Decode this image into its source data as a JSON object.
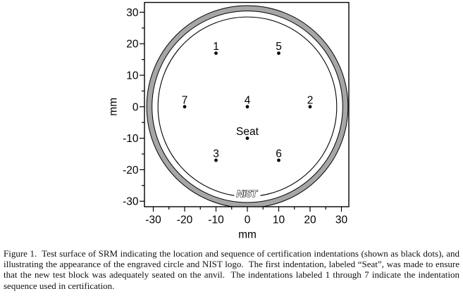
{
  "figure": {
    "caption": "Figure 1.  Test surface of SRM indicating the location and sequence of certification indentations (shown as black dots), and illustrating the appearance of the engraved circle and NIST logo.  The first indentation, labeled “Seat”, was made to ensure that the new test block was adequately seated on the anvil.  The indentations labeled 1 through 7 indicate the indentation sequence used in certification."
  },
  "chart_data": {
    "type": "scatter",
    "title": "",
    "xlabel": "mm",
    "ylabel": "mm",
    "xlim": [
      -32.8,
      32.4
    ],
    "ylim": [
      -31.7,
      33.1
    ],
    "grid": false,
    "x_major_ticks": [
      -30,
      -20,
      -10,
      0,
      10,
      20,
      30
    ],
    "x_minor_ticks": [
      -25,
      -15,
      -5,
      5,
      15,
      25
    ],
    "y_major_ticks": [
      -30,
      -20,
      -10,
      0,
      10,
      20,
      30
    ],
    "y_minor_ticks": [
      -25,
      -15,
      -5,
      5,
      15,
      25
    ],
    "points": [
      {
        "label": "1",
        "x": -10,
        "y": 17
      },
      {
        "label": "5",
        "x": 10,
        "y": 17
      },
      {
        "label": "7",
        "x": -20,
        "y": 0
      },
      {
        "label": "4",
        "x": 0,
        "y": 0
      },
      {
        "label": "2",
        "x": 20,
        "y": 0
      },
      {
        "label": "Seat",
        "x": 0,
        "y": -10
      },
      {
        "label": "3",
        "x": -10,
        "y": -17
      },
      {
        "label": "6",
        "x": 10,
        "y": -17
      }
    ],
    "engraved_circle_radius_mm": 28.5,
    "outer_ring": {
      "outer_radius_mm": 32.1,
      "inner_radius_mm": 30.4,
      "fill_color": "#a6a6a6",
      "edge_color": "#000000"
    },
    "logo_text": "NIST",
    "point_color": "#000000",
    "line_color": "#000000"
  }
}
